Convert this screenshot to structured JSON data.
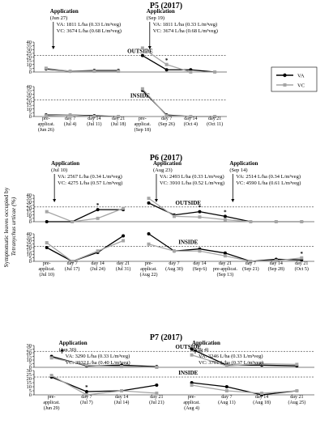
{
  "ylabel_line1": "Symptomatic leaves occupied by",
  "ylabel_line2": "Tetranychus urticae (%)",
  "legend": {
    "entries": [
      "VA",
      "VC"
    ],
    "colors": {
      "VA": "#000000",
      "VC": "#a6a6a6"
    }
  },
  "chart_data": [
    {
      "type": "line",
      "title": "P5 (2017)",
      "y_ticks": [
        0,
        5,
        10,
        15,
        20,
        25,
        30,
        35,
        40
      ],
      "outside_ylim": [
        0,
        40
      ],
      "inside_ylim": [
        0,
        40
      ],
      "outside_label": "OUTSIDE",
      "inside_label": "INSIDE",
      "threshold": 22,
      "x_labels": [
        [
          "pre-",
          "applicat.",
          "(Jun 26)"
        ],
        [
          "day 7",
          "(Jul 4)"
        ],
        [
          "day 14",
          "(Jul 11)"
        ],
        [
          "day 21",
          "(Jul 18)"
        ],
        [
          "pre-",
          "applicat.",
          "(Sep 18)"
        ],
        [
          "day 7",
          "(Sep 26)"
        ],
        [
          "day 14",
          "(Oct 4)"
        ],
        [
          "day 21",
          "(Oct 11)"
        ]
      ],
      "segments": [
        [
          0,
          3
        ],
        [
          4,
          7
        ]
      ],
      "outside_series": [
        {
          "name": "VA",
          "values": [
            4,
            1,
            2,
            2,
            22,
            3,
            3,
            0
          ]
        },
        {
          "name": "VC",
          "values": [
            5,
            1,
            1,
            1,
            32,
            10,
            0,
            0
          ]
        }
      ],
      "inside_series": [
        {
          "name": "VA",
          "values": [
            2,
            2,
            1,
            0,
            35,
            2,
            0,
            0
          ]
        },
        {
          "name": "VC",
          "values": [
            1,
            2,
            0,
            0,
            37,
            1,
            0,
            0
          ]
        }
      ],
      "outside_stars": [
        5
      ],
      "inside_stars": [],
      "applications": [
        {
          "title": "Application",
          "date": "(Jun 27)",
          "va": "1811 L/ha (0.33 L/m³veg)",
          "vc": "3674 L/ha (0.68 L/m³veg)",
          "at": 0.3
        },
        {
          "title": "Application",
          "date": "(Sep 19)",
          "va": "1811 L/ha (0.33 L/m³veg)",
          "vc": "3674 L/ha (0.68 L/m³veg)",
          "at": 4.3
        }
      ]
    },
    {
      "type": "line",
      "title": "P6 (2017)",
      "y_ticks": [
        0,
        5,
        10,
        15,
        20,
        25,
        30,
        35,
        40
      ],
      "outside_ylim": [
        0,
        40
      ],
      "inside_ylim": [
        0,
        40
      ],
      "outside_label": "OUTSIDE",
      "inside_label": "INSIDE",
      "threshold": 22,
      "x_labels": [
        [
          "pre-",
          "applicat.",
          "(Jul 10)"
        ],
        [
          "day 7",
          "(Jul 17)"
        ],
        [
          "day 14",
          "(Jul 24)"
        ],
        [
          "day 21",
          "(Jul 31)"
        ],
        [
          "pre-",
          "applicat.",
          "(Aug 22)"
        ],
        [
          "day 7",
          "(Aug 30)"
        ],
        [
          "day 14",
          "(Sep 6)"
        ],
        [
          "day 21",
          "pre-applicat.",
          "(Sep 13)"
        ],
        [
          "day 7",
          "(Sep 21)"
        ],
        [
          "day 14",
          "(Sep 28)"
        ],
        [
          "day 21",
          "(Oct 5)"
        ]
      ],
      "segments": [
        [
          0,
          3
        ],
        [
          4,
          10
        ]
      ],
      "outside_series": [
        {
          "name": "VA",
          "values": [
            0,
            0,
            18,
            18,
            28,
            10,
            15,
            8,
            0,
            0,
            0
          ]
        },
        {
          "name": "VC",
          "values": [
            15,
            0,
            5,
            20,
            35,
            8,
            7,
            3,
            0,
            0,
            0
          ]
        }
      ],
      "inside_series": [
        {
          "name": "VA",
          "values": [
            20,
            0,
            13,
            37,
            40,
            15,
            18,
            12,
            0,
            3,
            2
          ]
        },
        {
          "name": "VC",
          "values": [
            27,
            0,
            15,
            30,
            25,
            15,
            15,
            8,
            0,
            1,
            5
          ]
        }
      ],
      "outside_stars": [
        2,
        6,
        7
      ],
      "inside_stars": [
        10
      ],
      "applications": [
        {
          "title": "Application",
          "date": "(Jul 10)",
          "va": "2567 L/ha (0.34 L/m³veg)",
          "vc": "4275 L/ha (0.57 L/m³veg)",
          "at": 0.3
        },
        {
          "title": "Application",
          "date": "(Aug 23)",
          "va": "2493 L/ha (0.33 L/m³veg)",
          "vc": "3910 L/ha (0.52 L/m³veg)",
          "at": 4.3
        },
        {
          "title": "Application",
          "date": "(Sep 14)",
          "va": "2514 L/ha (0.34 L/m³veg)",
          "vc": "4590 L/ha (0.61 L/m³veg)",
          "at": 7.3
        }
      ]
    },
    {
      "type": "line",
      "title": "P7 (2017)",
      "y_ticks": [
        0,
        5,
        10,
        15,
        20,
        25,
        30
      ],
      "outside_ylim": [
        0,
        30
      ],
      "inside_ylim": [
        0,
        30
      ],
      "outside_label": "OUTSIDE",
      "inside_label": "INSIDE",
      "threshold": 22,
      "x_labels": [
        [
          "pre-",
          "applicat.",
          "(Jun 29)"
        ],
        [
          "day 7",
          "(Jul 7)"
        ],
        [
          "day 14",
          "(Jul 14)"
        ],
        [
          "day 21",
          "(Jul 21)"
        ],
        [
          "pre-",
          "applicat.",
          "(Aug 4)"
        ],
        [
          "day 7",
          "(Aug 11)"
        ],
        [
          "day 14",
          "(Aug 18)"
        ],
        [
          "day 21",
          "(Aug 25)"
        ]
      ],
      "segments": [
        [
          0,
          3
        ],
        [
          4,
          7
        ]
      ],
      "outside_series": [
        {
          "name": "VA",
          "values": [
            15,
            2,
            3,
            1,
            25,
            3,
            3,
            2
          ]
        },
        {
          "name": "VC",
          "values": [
            13,
            3,
            1,
            0,
            17,
            2,
            5,
            4
          ]
        }
      ],
      "inside_series": [
        {
          "name": "VA",
          "values": [
            22,
            4,
            5,
            12,
            15,
            10,
            0,
            5
          ]
        },
        {
          "name": "VC",
          "values": [
            24,
            0,
            5,
            2,
            12,
            5,
            2,
            5
          ]
        }
      ],
      "outside_stars": [],
      "inside_stars": [
        1
      ],
      "applications": [
        {
          "title": "Application",
          "date": "(Jun 30)",
          "va": "3290 L/ha (0.33 L/m³veg)",
          "vc": "3932 L/ha (0.40 L/m³veg)",
          "at": 0.3
        },
        {
          "title": "Application",
          "date": "(Aug 4)",
          "va": "3246 L/ha (0.33 L/m³veg)",
          "vc": "3701 L/ha (0.37 L/m³veg)",
          "at": 4.1
        }
      ]
    }
  ]
}
